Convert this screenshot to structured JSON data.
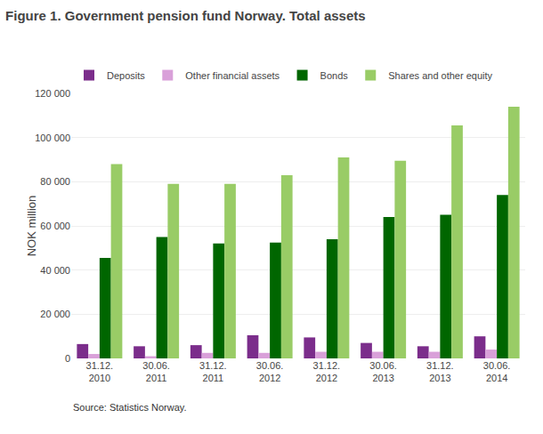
{
  "chart_data": {
    "type": "bar",
    "title": "Figure 1. Government pension fund Norway. Total assets",
    "ylabel": "NOK million",
    "annotations": [
      "Source: Statistics Norway."
    ],
    "categories": [
      "31.12.\n2010",
      "30.06.\n2011",
      "31.12.\n2011",
      "30.06.\n2012",
      "31.12.\n2012",
      "30.06.\n2013",
      "31.12.\n2013",
      "30.06.\n2014"
    ],
    "series": [
      {
        "name": "Deposits",
        "color": "#7b2d8b",
        "values": [
          6500,
          5500,
          6000,
          10500,
          9500,
          7000,
          5500,
          10000
        ]
      },
      {
        "name": "Other financial assets",
        "color": "#d9a0d9",
        "values": [
          2000,
          1000,
          2500,
          2500,
          3000,
          3000,
          3000,
          4000
        ]
      },
      {
        "name": "Bonds",
        "color": "#006600",
        "values": [
          45500,
          55000,
          52000,
          52500,
          54000,
          64000,
          65000,
          74000
        ]
      },
      {
        "name": "Shares and other equity",
        "color": "#99cc66",
        "values": [
          88000,
          79000,
          79000,
          83000,
          91000,
          89500,
          105500,
          114000
        ]
      }
    ],
    "ylim": [
      0,
      120000
    ],
    "yticks": [
      0,
      {
        "value": 20000,
        "label": "20 000"
      },
      {
        "value": 40000,
        "label": "40 000"
      },
      {
        "value": 60000,
        "label": "60 000"
      },
      {
        "value": 80000,
        "label": "80 000"
      },
      {
        "value": 100000,
        "label": "100 000"
      },
      {
        "value": 120000,
        "label": "120 000"
      }
    ],
    "grid": true,
    "legend": "upper left"
  }
}
